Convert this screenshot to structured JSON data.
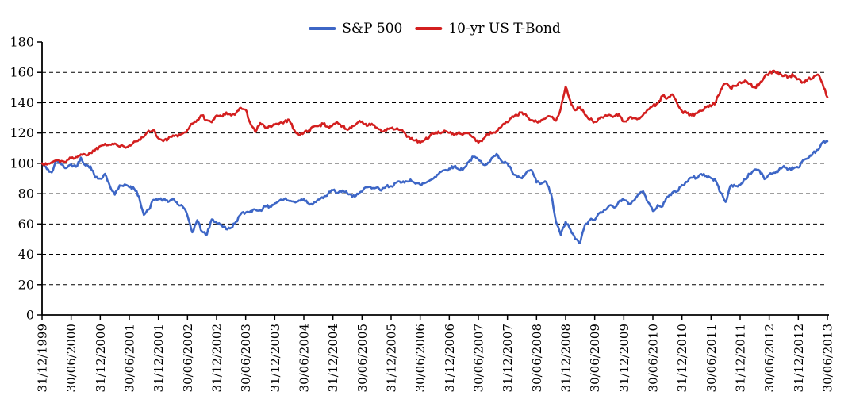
{
  "chart_data": {
    "type": "line",
    "title": "",
    "xlabel": "",
    "ylabel": "",
    "ylim": [
      0,
      180
    ],
    "y_ticks": [
      0,
      20,
      40,
      60,
      80,
      100,
      120,
      140,
      160,
      180
    ],
    "grid": "horizontal dashed black lines at 20-unit intervals (20-160)",
    "legend_position": "top-center",
    "x_frequency": "monthly",
    "x_start": "31/12/1999",
    "x_end": "30/06/2013",
    "x_tick_labels": [
      "31/12/1999",
      "30/06/2000",
      "31/12/2000",
      "30/06/2001",
      "31/12/2001",
      "30/06/2002",
      "31/12/2002",
      "30/06/2003",
      "31/12/2003",
      "30/06/2004",
      "31/12/2004",
      "30/06/2005",
      "31/12/2005",
      "30/06/2006",
      "31/12/2006",
      "30/06/2007",
      "31/12/2007",
      "30/06/2008",
      "31/12/2008",
      "30/06/2009",
      "31/12/2009",
      "30/06/2010",
      "31/12/2010",
      "30/06/2011",
      "31/12/2011",
      "30/06/2012",
      "31/12/2012",
      "30/06/2013"
    ],
    "series": [
      {
        "name": "S&P 500",
        "color": "#3D66C6",
        "values": [
          100,
          96.2,
          94.0,
          102.0,
          99.2,
          96.9,
          99.3,
          97.7,
          103.8,
          98.5,
          98.0,
          90.6,
          89.9,
          93.1,
          84.9,
          79.3,
          85.5,
          86.0,
          84.2,
          83.3,
          78.1,
          66.0,
          69.5,
          76.0,
          76.5,
          76.0,
          74.5,
          76.8,
          73.0,
          71.5,
          65.5,
          54.5,
          62.5,
          55.0,
          53.0,
          63.0,
          61.0,
          59.5,
          56.5,
          57.5,
          61.5,
          66.5,
          67.5,
          68.5,
          69.5,
          69.0,
          71.5,
          71.5,
          73.5,
          75.5,
          76.5,
          75.2,
          74.5,
          75.5,
          76.5,
          73.5,
          73.8,
          76.2,
          77.0,
          80.0,
          82.3,
          80.5,
          82.1,
          80.0,
          77.9,
          80.0,
          81.3,
          84.2,
          83.4,
          84.0,
          82.0,
          85.0,
          85.0,
          87.2,
          87.2,
          88.2,
          89.3,
          86.6,
          86.0,
          87.0,
          88.8,
          91.0,
          93.9,
          95.5,
          96.6,
          98.0,
          95.9,
          96.8,
          101.0,
          104.3,
          102.5,
          99.2,
          100.5,
          104.1,
          105.5,
          100.8,
          100.0,
          94.0,
          90.7,
          90.1,
          94.4,
          95.5,
          87.4,
          86.6,
          87.7,
          79.8,
          61.5,
          52.8,
          61.5,
          56.2,
          50.0,
          47.5,
          59.5,
          62.6,
          62.7,
          67.3,
          69.5,
          72.1,
          70.8,
          74.9,
          76.0,
          73.2,
          75.3,
          79.8,
          81.5,
          74.4,
          68.5,
          72.5,
          71.6,
          77.9,
          80.7,
          81.5,
          85.7,
          87.7,
          90.6,
          90.5,
          93.0,
          91.8,
          90.2,
          88.3,
          80.5,
          74.5,
          85.2,
          85.0,
          85.7,
          89.5,
          93.0,
          95.9,
          95.3,
          89.6,
          92.7,
          93.8,
          95.7,
          98.2,
          96.3,
          96.6,
          97.2,
          102.2,
          103.4,
          106.9,
          108.9,
          113.7,
          114.5
        ]
      },
      {
        "name": "10-yr US T-Bond",
        "color": "#D31F1F",
        "values": [
          100,
          99.2,
          100.7,
          102.1,
          101.6,
          101.2,
          103.5,
          104.2,
          105.9,
          105.5,
          106.9,
          109.0,
          111.4,
          112.9,
          112.4,
          113.1,
          110.9,
          111.0,
          111.8,
          114.4,
          115.7,
          117.5,
          121.5,
          122.0,
          116.4,
          114.6,
          116.1,
          118.4,
          117.6,
          119.6,
          122.1,
          126.2,
          128.6,
          131.6,
          128.5,
          127.1,
          131.6,
          131.1,
          133.6,
          131.6,
          133.1,
          136.6,
          135.4,
          126.1,
          120.6,
          126.6,
          123.6,
          124.6,
          125.6,
          126.6,
          127.6,
          128.6,
          122.1,
          118.6,
          120.1,
          121.6,
          124.1,
          124.6,
          126.1,
          124.1,
          125.6,
          126.6,
          124.6,
          122.1,
          124.6,
          126.6,
          127.6,
          124.6,
          126.1,
          123.6,
          121.1,
          121.6,
          123.1,
          122.6,
          122.1,
          119.1,
          116.1,
          115.1,
          113.6,
          115.6,
          118.1,
          119.6,
          120.1,
          121.6,
          120.1,
          118.6,
          120.6,
          119.6,
          120.1,
          117.1,
          113.6,
          116.1,
          119.1,
          120.1,
          121.6,
          125.6,
          127.1,
          131.1,
          131.6,
          133.6,
          131.1,
          128.6,
          127.6,
          128.6,
          130.1,
          130.6,
          128.1,
          136.1,
          150.6,
          141.0,
          135.0,
          137.0,
          132.0,
          129.0,
          127.5,
          129.5,
          131.0,
          132.0,
          131.0,
          132.5,
          127.5,
          129.5,
          130.0,
          129.5,
          132.0,
          135.5,
          138.0,
          139.5,
          144.5,
          143.0,
          145.5,
          139.5,
          134.5,
          133.1,
          131.6,
          133.1,
          134.6,
          137.1,
          137.6,
          140.6,
          148.6,
          152.6,
          149.6,
          151.1,
          153.6,
          154.6,
          152.6,
          150.1,
          152.6,
          157.1,
          159.6,
          161.1,
          158.6,
          157.6,
          157.1,
          158.1,
          155.6,
          153.6,
          155.6,
          156.1,
          158.6,
          152.6,
          143.6
        ]
      }
    ]
  }
}
